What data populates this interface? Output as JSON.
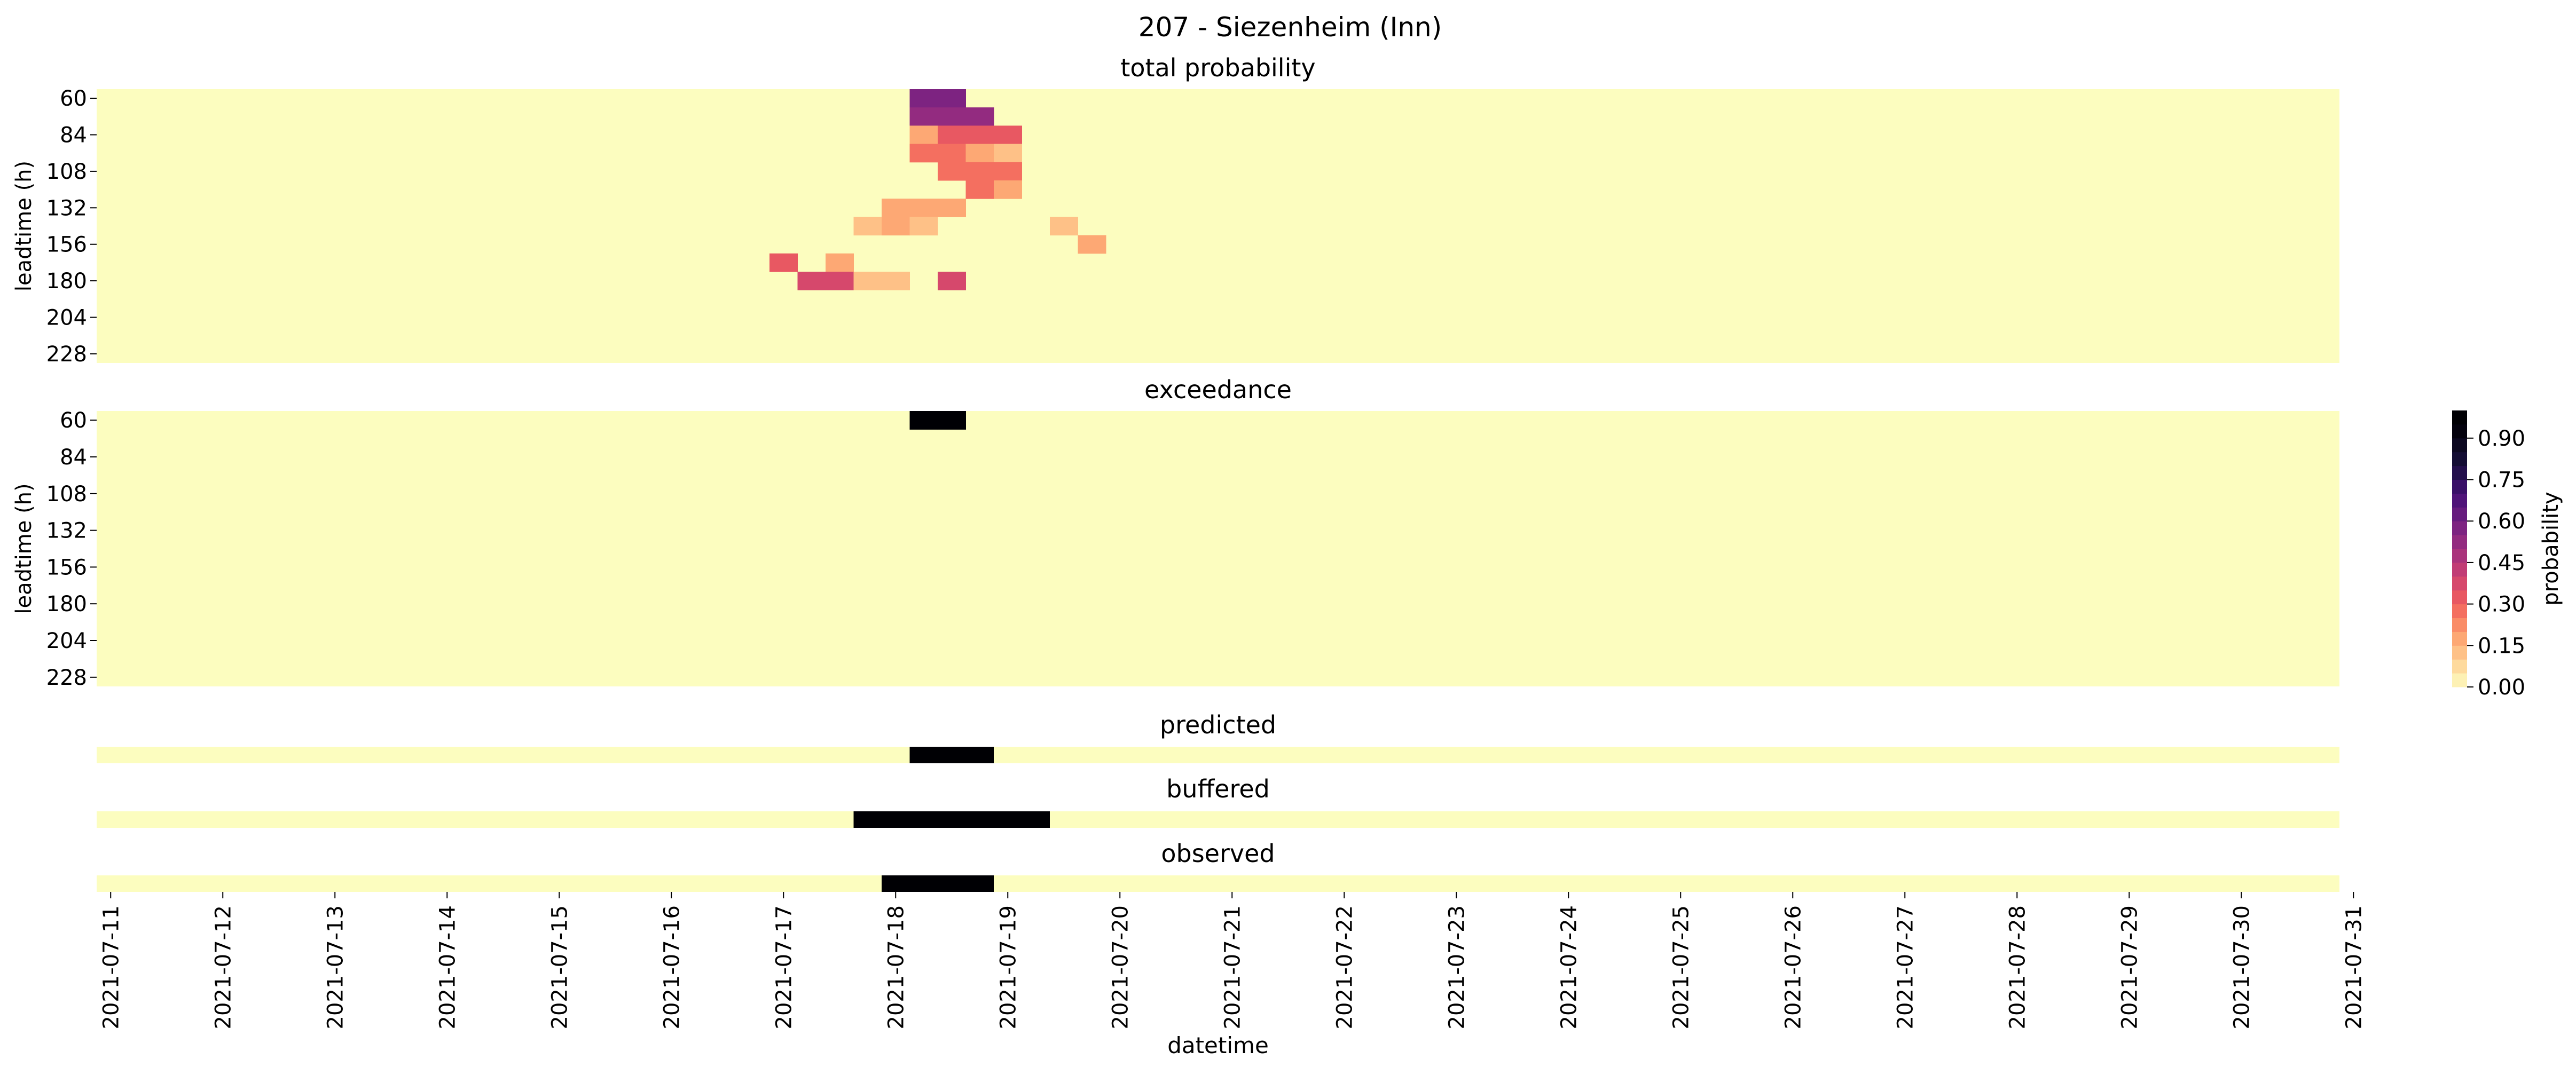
{
  "chart_data": {
    "type": "heatmap",
    "title": "207 - Siezenheim (Inn)",
    "xlabel": "datetime",
    "date_range": [
      "2021-07-11",
      "2021-07-31"
    ],
    "steps_per_day": 4,
    "x_tick_labels": [
      "2021-07-11",
      "2021-07-12",
      "2021-07-13",
      "2021-07-14",
      "2021-07-15",
      "2021-07-16",
      "2021-07-17",
      "2021-07-18",
      "2021-07-19",
      "2021-07-20",
      "2021-07-21",
      "2021-07-22",
      "2021-07-23",
      "2021-07-24",
      "2021-07-25",
      "2021-07-26",
      "2021-07-27",
      "2021-07-28",
      "2021-07-29",
      "2021-07-30",
      "2021-07-31"
    ],
    "colormap": "magma_r",
    "colorbar": {
      "label": "probability",
      "ticks": [
        "0.00",
        "0.15",
        "0.30",
        "0.45",
        "0.60",
        "0.75",
        "0.90"
      ],
      "range": [
        0,
        1
      ],
      "levels": 20
    },
    "background_value": 0,
    "panels": [
      {
        "title": "total probability",
        "ylabel": "leadtime (h)",
        "leadtime_range": [
          60,
          240
        ],
        "leadtime_step": 12,
        "y_tick_labels": [
          "60",
          "84",
          "108",
          "132",
          "156",
          "180",
          "204",
          "228"
        ],
        "cells": [
          {
            "time": "2021-07-18 06:00",
            "leadtime": 60,
            "value": 0.55
          },
          {
            "time": "2021-07-18 12:00",
            "leadtime": 60,
            "value": 0.55
          },
          {
            "time": "2021-07-18 06:00",
            "leadtime": 72,
            "value": 0.5
          },
          {
            "time": "2021-07-18 12:00",
            "leadtime": 72,
            "value": 0.5
          },
          {
            "time": "2021-07-18 18:00",
            "leadtime": 72,
            "value": 0.5
          },
          {
            "time": "2021-07-18 06:00",
            "leadtime": 84,
            "value": 0.15
          },
          {
            "time": "2021-07-18 12:00",
            "leadtime": 84,
            "value": 0.3
          },
          {
            "time": "2021-07-18 18:00",
            "leadtime": 84,
            "value": 0.3
          },
          {
            "time": "2021-07-19 00:00",
            "leadtime": 84,
            "value": 0.3
          },
          {
            "time": "2021-07-18 06:00",
            "leadtime": 96,
            "value": 0.25
          },
          {
            "time": "2021-07-18 12:00",
            "leadtime": 96,
            "value": 0.25
          },
          {
            "time": "2021-07-18 18:00",
            "leadtime": 96,
            "value": 0.15
          },
          {
            "time": "2021-07-19 00:00",
            "leadtime": 96,
            "value": 0.1
          },
          {
            "time": "2021-07-18 12:00",
            "leadtime": 108,
            "value": 0.25
          },
          {
            "time": "2021-07-18 18:00",
            "leadtime": 108,
            "value": 0.25
          },
          {
            "time": "2021-07-19 00:00",
            "leadtime": 108,
            "value": 0.25
          },
          {
            "time": "2021-07-18 18:00",
            "leadtime": 120,
            "value": 0.25
          },
          {
            "time": "2021-07-19 00:00",
            "leadtime": 120,
            "value": 0.15
          },
          {
            "time": "2021-07-18 00:00",
            "leadtime": 132,
            "value": 0.15
          },
          {
            "time": "2021-07-18 06:00",
            "leadtime": 132,
            "value": 0.15
          },
          {
            "time": "2021-07-18 12:00",
            "leadtime": 132,
            "value": 0.15
          },
          {
            "time": "2021-07-17 18:00",
            "leadtime": 144,
            "value": 0.1
          },
          {
            "time": "2021-07-18 00:00",
            "leadtime": 144,
            "value": 0.15
          },
          {
            "time": "2021-07-18 06:00",
            "leadtime": 144,
            "value": 0.1
          },
          {
            "time": "2021-07-19 12:00",
            "leadtime": 144,
            "value": 0.1
          },
          {
            "time": "2021-07-19 18:00",
            "leadtime": 156,
            "value": 0.15
          },
          {
            "time": "2021-07-17 00:00",
            "leadtime": 168,
            "value": 0.3
          },
          {
            "time": "2021-07-17 12:00",
            "leadtime": 168,
            "value": 0.15
          },
          {
            "time": "2021-07-17 06:00",
            "leadtime": 180,
            "value": 0.35
          },
          {
            "time": "2021-07-17 12:00",
            "leadtime": 180,
            "value": 0.35
          },
          {
            "time": "2021-07-17 18:00",
            "leadtime": 180,
            "value": 0.1
          },
          {
            "time": "2021-07-18 00:00",
            "leadtime": 180,
            "value": 0.1
          },
          {
            "time": "2021-07-18 12:00",
            "leadtime": 180,
            "value": 0.35
          }
        ]
      },
      {
        "title": "exceedance",
        "ylabel": "leadtime (h)",
        "leadtime_range": [
          60,
          240
        ],
        "leadtime_step": 12,
        "y_tick_labels": [
          "60",
          "84",
          "108",
          "132",
          "156",
          "180",
          "204",
          "228"
        ],
        "cells": [
          {
            "time": "2021-07-18 06:00",
            "leadtime": 60,
            "value": 1
          },
          {
            "time": "2021-07-18 12:00",
            "leadtime": 60,
            "value": 1
          }
        ]
      },
      {
        "title": "predicted",
        "events": [
          {
            "start": "2021-07-18 06:00",
            "end": "2021-07-18 18:00",
            "value": 1
          }
        ]
      },
      {
        "title": "buffered",
        "events": [
          {
            "start": "2021-07-17 18:00",
            "end": "2021-07-19 06:00",
            "value": 1
          }
        ]
      },
      {
        "title": "observed",
        "events": [
          {
            "start": "2021-07-18 00:00",
            "end": "2021-07-18 18:00",
            "value": 1
          }
        ]
      }
    ]
  }
}
